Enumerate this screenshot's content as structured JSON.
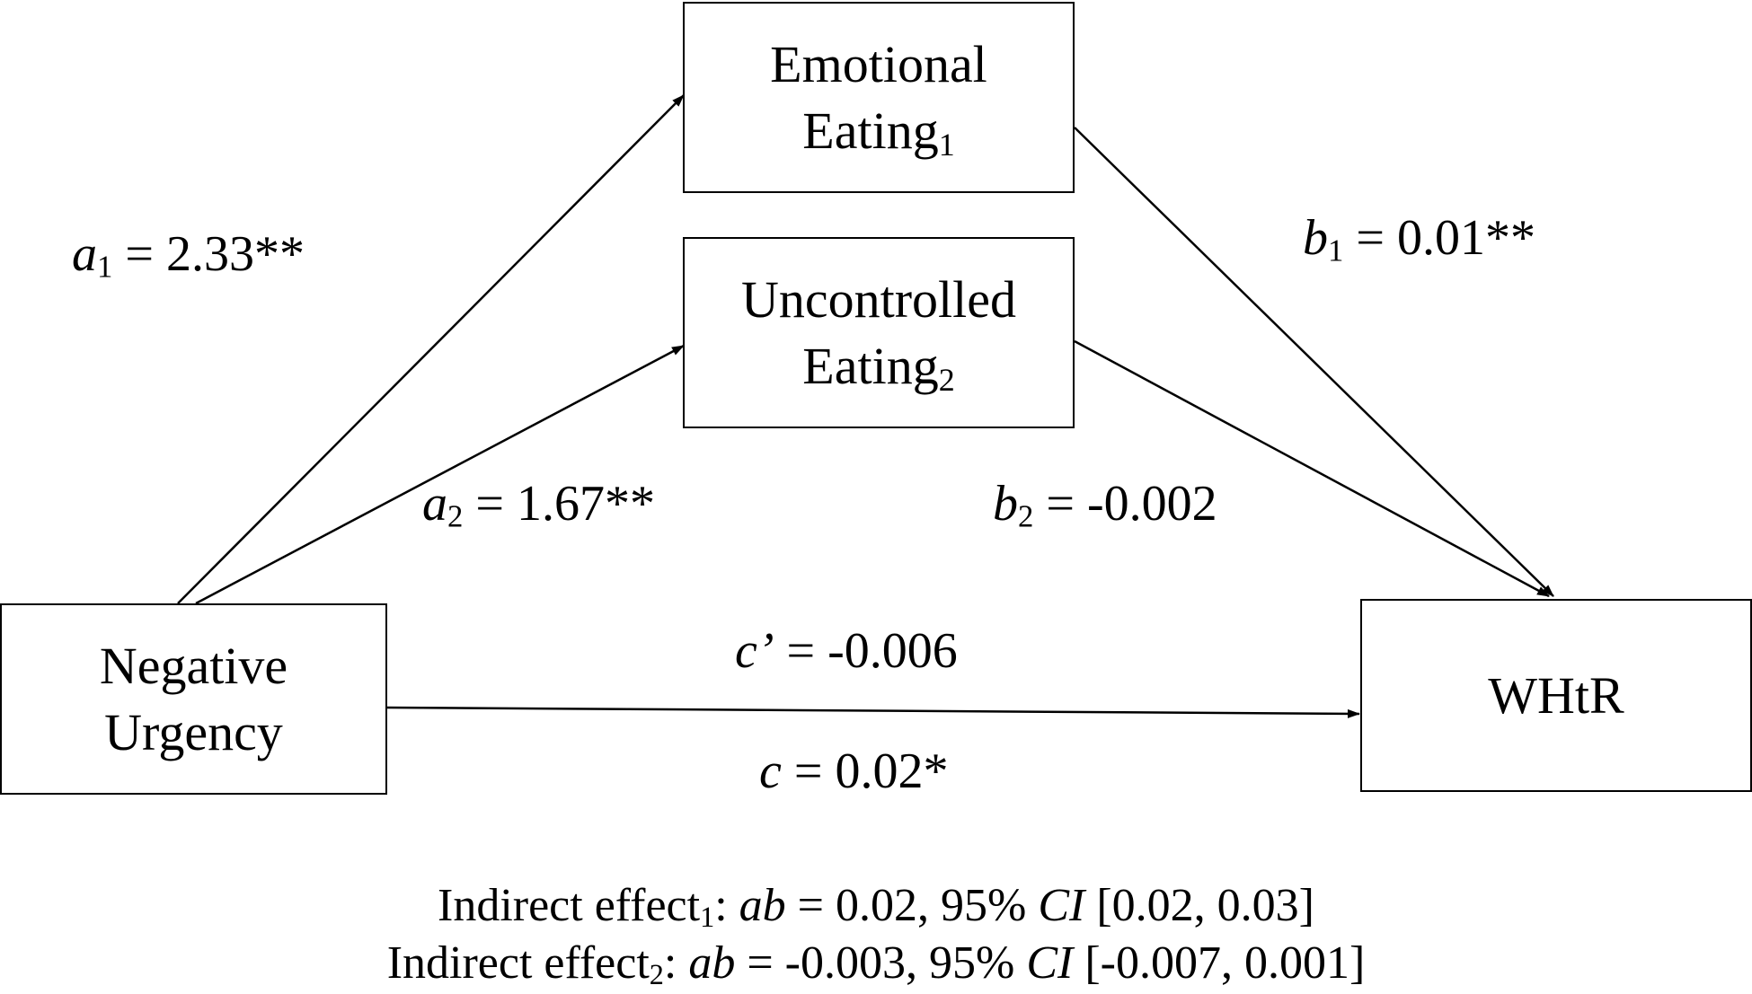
{
  "nodes": {
    "emotional": {
      "line1": "Emotional",
      "line2": "Eating",
      "sub": "1"
    },
    "uncontrolled": {
      "line1": "Uncontrolled",
      "line2": "Eating",
      "sub": "2"
    },
    "negative": {
      "line1": "Negative",
      "line2": "Urgency"
    },
    "whtr": {
      "label": "WHtR"
    }
  },
  "paths": {
    "a1": {
      "sym": "a",
      "sub": "1",
      "value": " = 2.33**"
    },
    "a2": {
      "sym": "a",
      "sub": "2",
      "value": " = 1.67**"
    },
    "b1": {
      "sym": "b",
      "sub": "1",
      "value": " = 0.01**"
    },
    "b2": {
      "sym": "b",
      "sub": "2",
      "value": " = -0.002"
    },
    "c_prime": {
      "sym": "c’",
      "value": " = -0.006"
    },
    "c": {
      "sym": "c",
      "value": " = 0.02*"
    }
  },
  "indirect": [
    {
      "lead": "Indirect effect",
      "sub": "1",
      "colon": ": ",
      "ab": "ab",
      "eq": " = 0.02, 95% ",
      "ci": "CI",
      "range": " [0.02, 0.03]"
    },
    {
      "lead": "Indirect effect",
      "sub": "2",
      "colon": ": ",
      "ab": "ab",
      "eq": " = -0.003, 95% ",
      "ci": "CI",
      "range": " [-0.007, 0.001]"
    }
  ]
}
